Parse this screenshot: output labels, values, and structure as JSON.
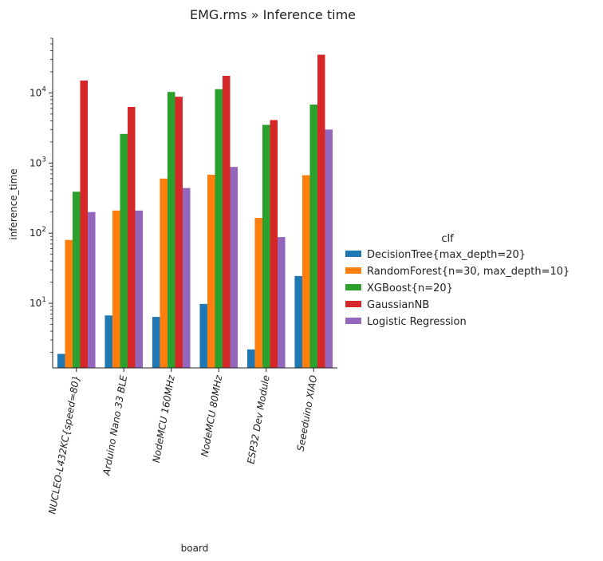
{
  "chart_data": {
    "type": "bar",
    "title": "EMG.rms » Inference time",
    "xlabel": "board",
    "ylabel": "inference_time",
    "yscale": "log",
    "ylim": [
      1.2,
      60000
    ],
    "grid": false,
    "legend_title": "clf",
    "legend_position": "right",
    "categories": [
      "NUCLEO-L432KC{speed=80}",
      "Arduino Nano 33 BLE",
      "NodeMCU 160MHz",
      "NodeMCU 80MHz",
      "ESP32 Dev Module",
      "Seeeduino XIAO"
    ],
    "series": [
      {
        "name": "DecisionTree{max_depth=20}",
        "color": "#1f77b4",
        "values": [
          1.9,
          6.7,
          6.4,
          9.8,
          2.2,
          24.5
        ]
      },
      {
        "name": "RandomForest{n=30, max_depth=10}",
        "color": "#ff7f0e",
        "values": [
          80,
          210,
          600,
          680,
          165,
          670
        ]
      },
      {
        "name": "XGBoost{n=20}",
        "color": "#2ca02c",
        "values": [
          390,
          2600,
          10300,
          11300,
          3500,
          6800
        ]
      },
      {
        "name": "GaussianNB",
        "color": "#d62728",
        "values": [
          15000,
          6300,
          8800,
          17500,
          4100,
          35000
        ]
      },
      {
        "name": "Logistic Regression",
        "color": "#9467bd",
        "values": [
          200,
          210,
          440,
          880,
          88,
          3000
        ]
      }
    ],
    "y_tick_labels": [
      "10^1",
      "10^2",
      "10^3",
      "10^4"
    ]
  }
}
